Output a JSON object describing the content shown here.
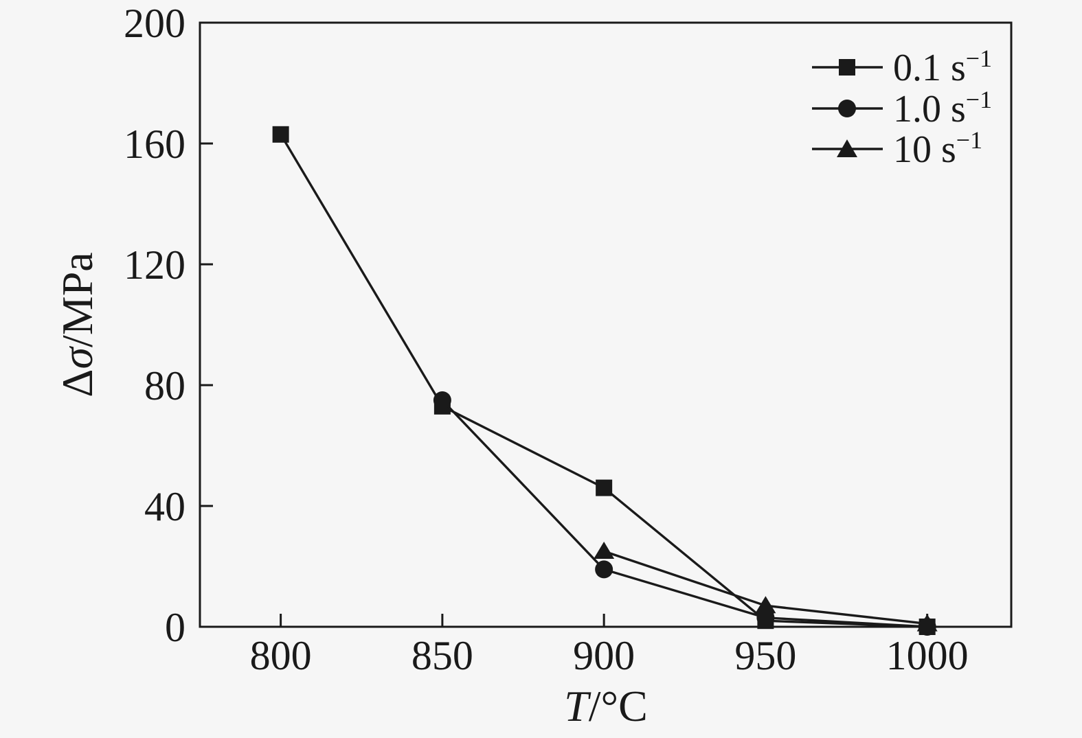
{
  "chart_data": {
    "type": "line",
    "title": "",
    "xlabel": "T/°C",
    "ylabel": "Δσ/MPa",
    "xlabel_parts": {
      "italic": "T",
      "rest": "/°C"
    },
    "ylabel_parts": {
      "prefix": "Δ",
      "italic": "σ",
      "rest": "/MPa"
    },
    "x_ticks": [
      "800",
      "850",
      "900",
      "950",
      "1000"
    ],
    "x_tick_values": [
      800,
      850,
      900,
      950,
      1000
    ],
    "y_ticks": [
      "0",
      "40",
      "80",
      "120",
      "160",
      "200"
    ],
    "y_tick_values": [
      0,
      40,
      80,
      120,
      160,
      200
    ],
    "xlim": [
      775,
      1026
    ],
    "ylim": [
      0,
      200
    ],
    "grid": false,
    "legend_position": "top-right-inside",
    "series": [
      {
        "name": "0.1 s−1",
        "marker": "square",
        "x": [
          800,
          850,
          900,
          950,
          1000
        ],
        "y": [
          163,
          73,
          46,
          2,
          0
        ]
      },
      {
        "name": "1.0 s−1",
        "marker": "circle",
        "x": [
          850,
          900,
          950,
          1000
        ],
        "y": [
          75,
          19,
          3,
          0
        ]
      },
      {
        "name": "10 s−1",
        "marker": "triangle",
        "x": [
          900,
          950,
          1000
        ],
        "y": [
          25,
          7,
          1
        ]
      }
    ],
    "legend": [
      {
        "prefix": "0.1 s",
        "superscript": "−1",
        "marker": "square"
      },
      {
        "prefix": "1.0 s",
        "superscript": "−1",
        "marker": "circle"
      },
      {
        "prefix": "10 s",
        "superscript": "−1",
        "marker": "triangle"
      }
    ],
    "colors": {
      "line": "#1a1a1a",
      "text": "#1a1a1a",
      "background": "#f6f6f6"
    }
  }
}
